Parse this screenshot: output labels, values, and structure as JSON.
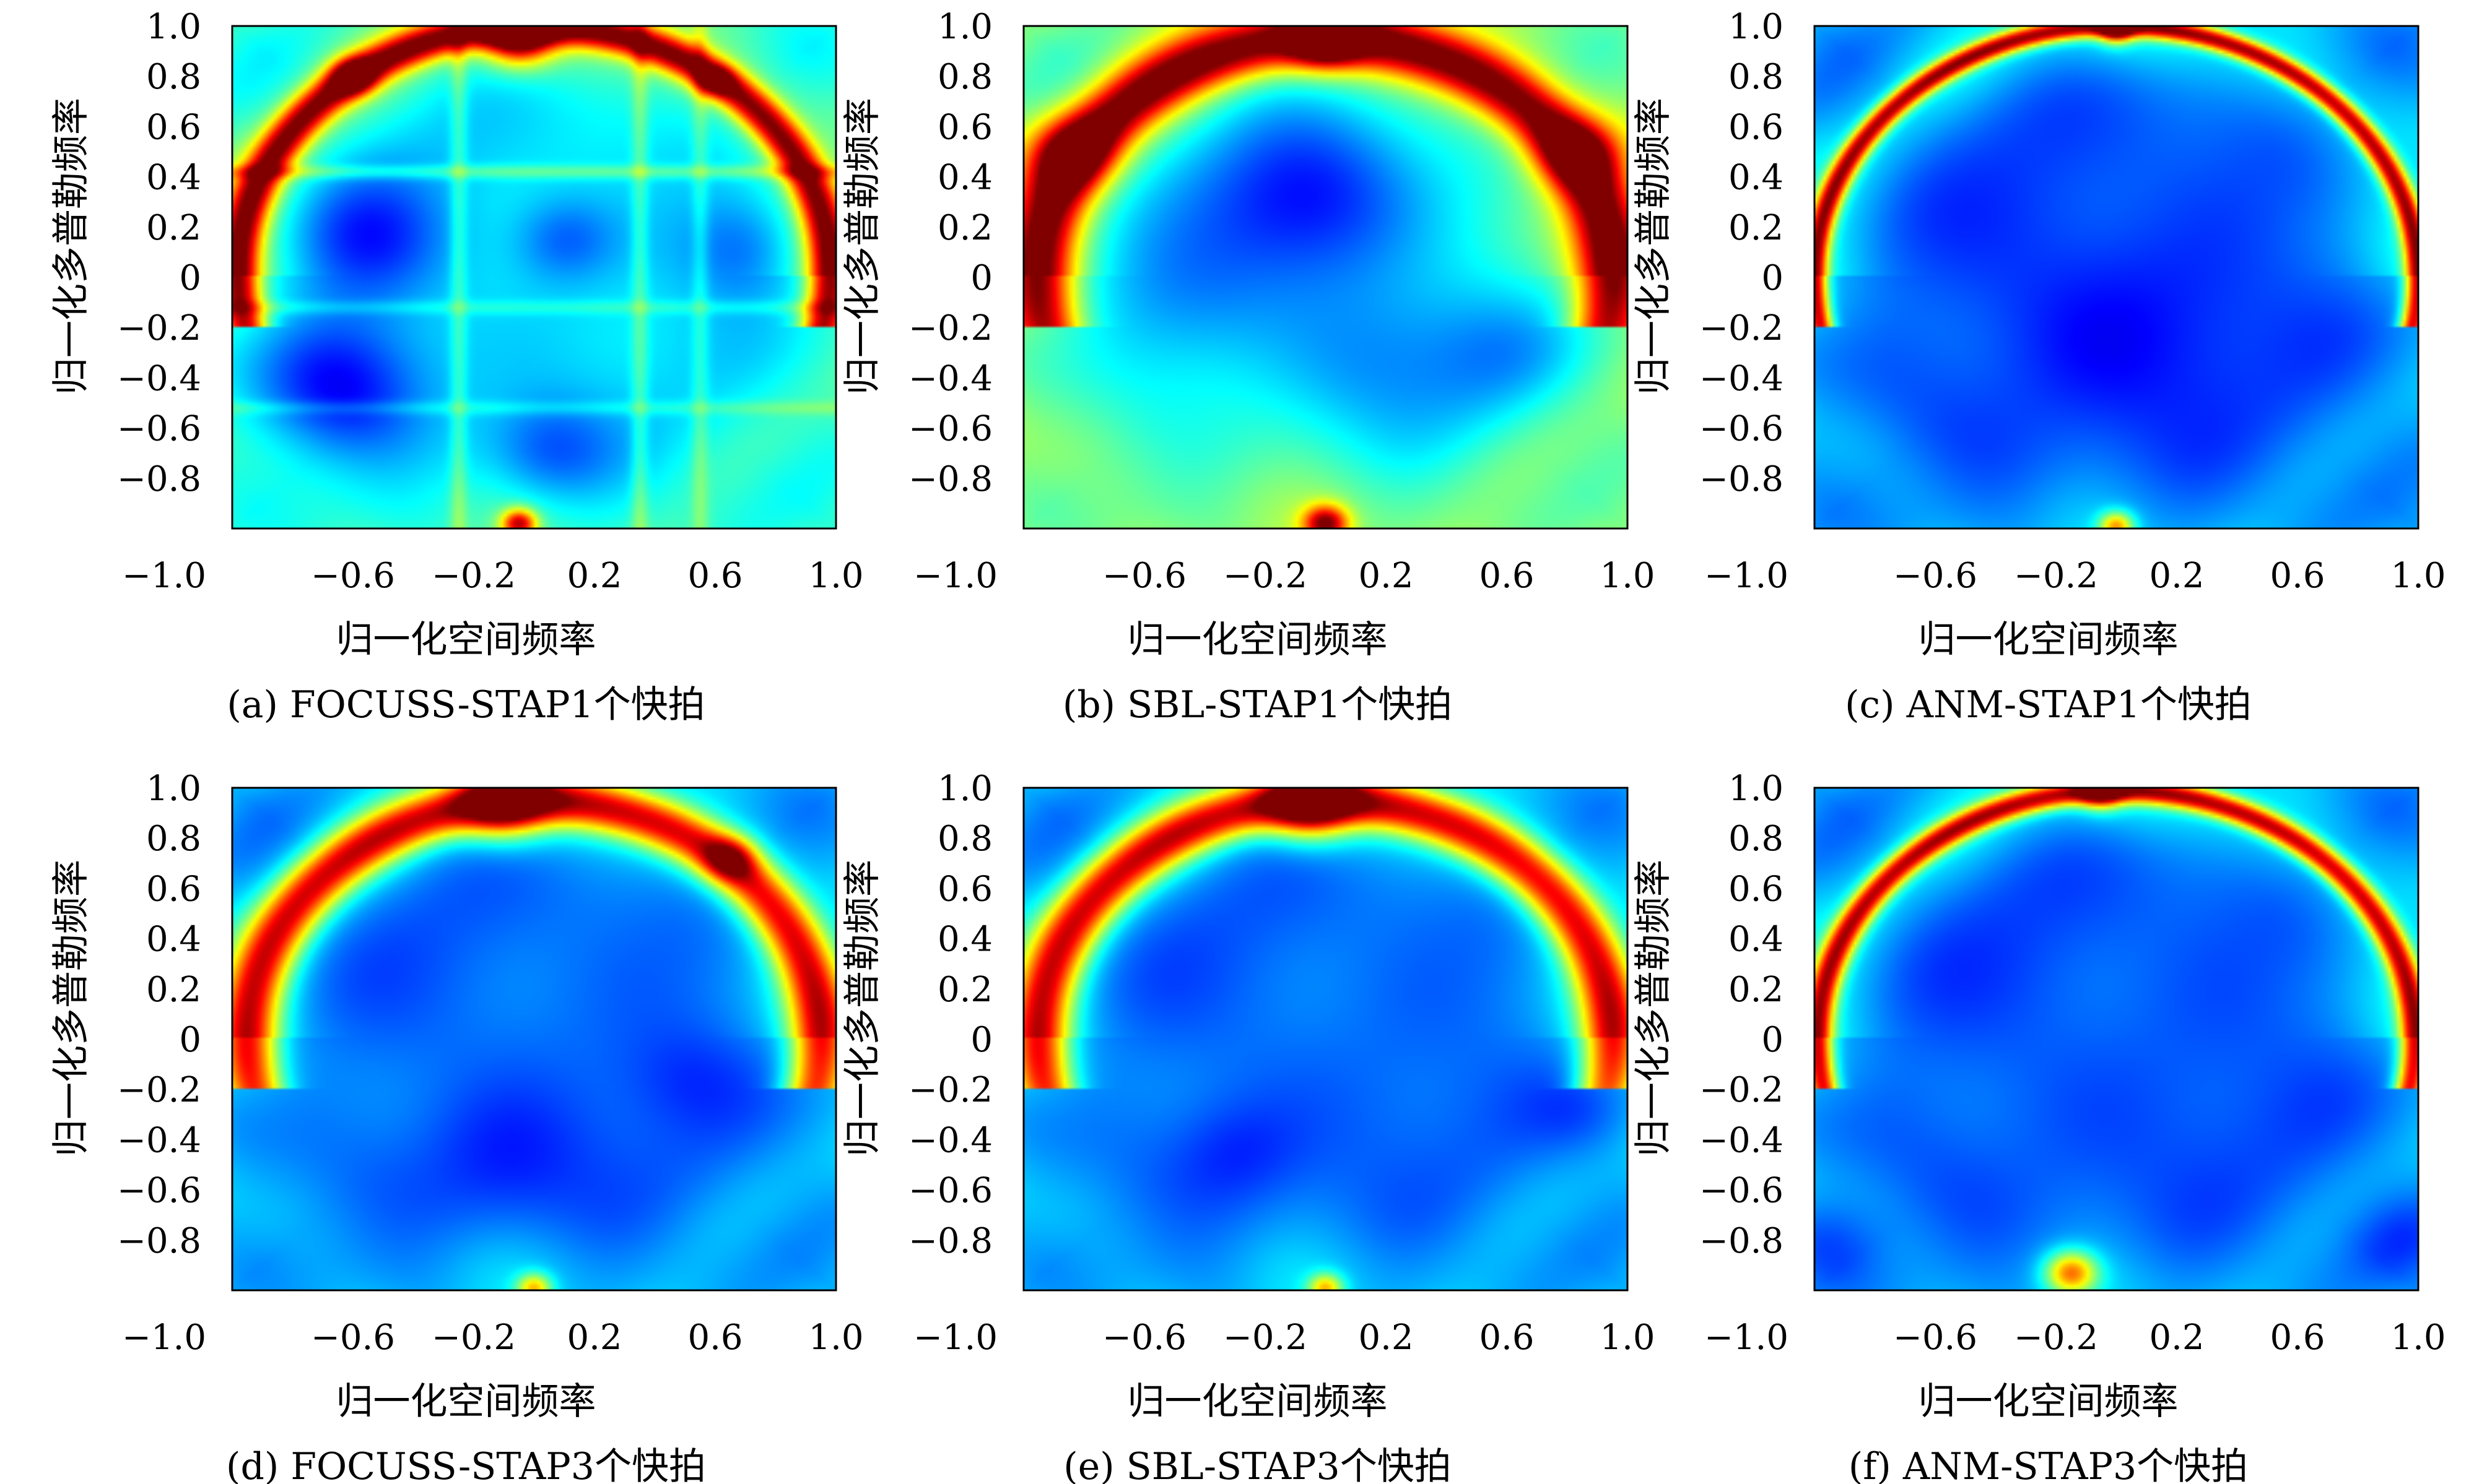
{
  "figure": {
    "background": "#ffffff"
  },
  "chart_data": [
    {
      "type": "heatmap",
      "caption": "(a) FOCUSS-STAP1个快拍",
      "xlabel": "归一化空间频率",
      "ylabel": "归一化多普勒频率",
      "xlim": [
        -1.0,
        1.0
      ],
      "ylim": [
        -1.0,
        1.0
      ],
      "xticks": [
        "−1.0",
        "−0.6",
        "−0.2",
        "0.2",
        "0.6",
        "1.0"
      ],
      "yticks": [
        "1.0",
        "0.8",
        "0.6",
        "0.4",
        "0.2",
        "0",
        "−0.2",
        "−0.4",
        "−0.6",
        "−0.8"
      ],
      "colormap": "jet",
      "features": {
        "background_level": 0.34,
        "arc": {
          "radius": 0.98,
          "center_y": 0.02,
          "strength": 0.55,
          "width": 0.05
        },
        "horizontal_ridges": [
          {
            "y": 0.42,
            "strength": 0.12
          },
          {
            "y": -0.12,
            "strength": 0.07
          },
          {
            "y": -0.52,
            "strength": 0.07
          }
        ],
        "vertical_ridges": [
          {
            "x": -0.25,
            "strength": 0.1
          },
          {
            "x": 0.35,
            "strength": 0.1
          },
          {
            "x": 0.55,
            "strength": 0.08
          }
        ],
        "hot_spots": [
          {
            "x": -0.05,
            "y": 0.97,
            "strength": 0.62,
            "r": 0.08
          },
          {
            "x": -0.6,
            "y": 0.8,
            "strength": 0.38,
            "r": 0.05
          },
          {
            "x": 0.6,
            "y": 0.78,
            "strength": 0.3,
            "r": 0.04
          },
          {
            "x": -0.05,
            "y": -0.98,
            "strength": 0.5,
            "r": 0.04
          }
        ],
        "dark_spots": [
          {
            "x": -0.65,
            "y": -0.42,
            "strength": 0.24,
            "r": 0.2
          },
          {
            "x": -0.55,
            "y": 0.15,
            "strength": 0.18,
            "r": 0.18
          },
          {
            "x": 0.05,
            "y": -0.7,
            "strength": 0.16,
            "r": 0.15
          },
          {
            "x": 0.7,
            "y": 0.12,
            "strength": 0.15,
            "r": 0.15
          },
          {
            "x": 0.1,
            "y": 0.15,
            "strength": 0.14,
            "r": 0.12
          }
        ]
      }
    },
    {
      "type": "heatmap",
      "caption": "(b) SBL-STAP1个快拍",
      "xlabel": "归一化空间频率",
      "ylabel": "归一化多普勒频率",
      "xlim": [
        -1.0,
        1.0
      ],
      "ylim": [
        -1.0,
        1.0
      ],
      "xticks": [
        "−1.0",
        "−0.6",
        "−0.2",
        "0.2",
        "0.6",
        "1.0"
      ],
      "yticks": [
        "1.0",
        "0.8",
        "0.6",
        "0.4",
        "0.2",
        "0",
        "−0.2",
        "−0.4",
        "−0.6",
        "−0.8"
      ],
      "colormap": "jet",
      "features": {
        "background_level": 0.42,
        "arc": {
          "radius": 0.95,
          "center_y": 0.0,
          "strength": 0.5,
          "width": 0.08
        },
        "horizontal_ridges": [],
        "vertical_ridges": [],
        "hot_spots": [
          {
            "x": 0.0,
            "y": 0.97,
            "strength": 0.55,
            "r": 0.08
          },
          {
            "x": -0.85,
            "y": 0.5,
            "strength": 0.3,
            "r": 0.1
          },
          {
            "x": 0.85,
            "y": 0.5,
            "strength": 0.3,
            "r": 0.1
          },
          {
            "x": 0.0,
            "y": -0.98,
            "strength": 0.5,
            "r": 0.05
          }
        ],
        "dark_spots": [
          {
            "x": -0.05,
            "y": 0.32,
            "strength": 0.3,
            "r": 0.26
          },
          {
            "x": -0.5,
            "y": -0.1,
            "strength": 0.16,
            "r": 0.25
          },
          {
            "x": 0.2,
            "y": -0.35,
            "strength": 0.14,
            "r": 0.25
          },
          {
            "x": 0.6,
            "y": -0.3,
            "strength": 0.12,
            "r": 0.2
          }
        ]
      }
    },
    {
      "type": "heatmap",
      "caption": "(c) ANM-STAP1个快拍",
      "xlabel": "归一化空间频率",
      "ylabel": "归一化多普勒频率",
      "xlim": [
        -1.0,
        1.0
      ],
      "ylim": [
        -1.0,
        1.0
      ],
      "xticks": [
        "−1.0",
        "−0.6",
        "−0.2",
        "0.2",
        "0.6",
        "1.0"
      ],
      "yticks": [
        "1.0",
        "0.8",
        "0.6",
        "0.4",
        "0.2",
        "0",
        "−0.2",
        "−0.4",
        "−0.6",
        "−0.8"
      ],
      "colormap": "jet",
      "features": {
        "background_level": 0.2,
        "arc": {
          "radius": 1.0,
          "center_y": 0.0,
          "strength": 0.62,
          "width": 0.03
        },
        "horizontal_ridges": [],
        "vertical_ridges": [],
        "hot_spots": [
          {
            "x": 0.0,
            "y": 0.99,
            "strength": 0.5,
            "r": 0.04
          },
          {
            "x": 0.0,
            "y": -0.99,
            "strength": 0.4,
            "r": 0.04
          }
        ],
        "dark_spots": [
          {
            "x": 0.0,
            "y": -0.2,
            "strength": 0.08,
            "r": 0.3
          }
        ]
      }
    },
    {
      "type": "heatmap",
      "caption": "(d) FOCUSS-STAP3个快拍",
      "xlabel": "归一化空间频率",
      "ylabel": "归一化多普勒频率",
      "xlim": [
        -1.0,
        1.0
      ],
      "ylim": [
        -1.0,
        1.0
      ],
      "xticks": [
        "−1.0",
        "−0.6",
        "−0.2",
        "0.2",
        "0.6",
        "1.0"
      ],
      "yticks": [
        "1.0",
        "0.8",
        "0.6",
        "0.4",
        "0.2",
        "0",
        "−0.2",
        "−0.4",
        "−0.6",
        "−0.8"
      ],
      "colormap": "jet",
      "features": {
        "background_level": 0.22,
        "arc": {
          "radius": 0.95,
          "center_y": 0.0,
          "strength": 0.55,
          "width": 0.07
        },
        "horizontal_ridges": [],
        "vertical_ridges": [],
        "hot_spots": [
          {
            "x": -0.1,
            "y": 0.95,
            "strength": 0.5,
            "r": 0.1
          },
          {
            "x": 0.65,
            "y": 0.72,
            "strength": 0.3,
            "r": 0.06
          },
          {
            "x": 0.0,
            "y": -0.99,
            "strength": 0.35,
            "r": 0.04
          }
        ],
        "dark_spots": [
          {
            "x": -0.1,
            "y": -0.5,
            "strength": 0.08,
            "r": 0.2
          },
          {
            "x": 0.5,
            "y": -0.15,
            "strength": 0.06,
            "r": 0.15
          }
        ]
      }
    },
    {
      "type": "heatmap",
      "caption": "(e) SBL-STAP3个快拍",
      "xlabel": "归一化空间频率",
      "ylabel": "归一化多普勒频率",
      "xlim": [
        -1.0,
        1.0
      ],
      "ylim": [
        -1.0,
        1.0
      ],
      "xticks": [
        "−1.0",
        "−0.6",
        "−0.2",
        "0.2",
        "0.6",
        "1.0"
      ],
      "yticks": [
        "1.0",
        "0.8",
        "0.6",
        "0.4",
        "0.2",
        "0",
        "−0.2",
        "−0.4",
        "−0.6",
        "−0.8"
      ],
      "colormap": "jet",
      "features": {
        "background_level": 0.22,
        "arc": {
          "radius": 0.95,
          "center_y": 0.0,
          "strength": 0.55,
          "width": 0.07
        },
        "horizontal_ridges": [],
        "vertical_ridges": [],
        "hot_spots": [
          {
            "x": -0.05,
            "y": 0.95,
            "strength": 0.55,
            "r": 0.1
          },
          {
            "x": 0.0,
            "y": -0.99,
            "strength": 0.35,
            "r": 0.04
          }
        ],
        "dark_spots": [
          {
            "x": -0.3,
            "y": -0.45,
            "strength": 0.08,
            "r": 0.15
          },
          {
            "x": 0.85,
            "y": -0.3,
            "strength": 0.06,
            "r": 0.12
          }
        ]
      }
    },
    {
      "type": "heatmap",
      "caption": "(f) ANM-STAP3个快拍",
      "xlabel": "归一化空间频率",
      "ylabel": "归一化多普勒频率",
      "xlim": [
        -1.0,
        1.0
      ],
      "ylim": [
        -1.0,
        1.0
      ],
      "xticks": [
        "−1.0",
        "−0.6",
        "−0.2",
        "0.2",
        "0.6",
        "1.0"
      ],
      "yticks": [
        "1.0",
        "0.8",
        "0.6",
        "0.4",
        "0.2",
        "0",
        "−0.2",
        "−0.4",
        "−0.6",
        "−0.8"
      ],
      "colormap": "jet",
      "features": {
        "background_level": 0.2,
        "arc": {
          "radius": 0.99,
          "center_y": 0.0,
          "strength": 0.6,
          "width": 0.035
        },
        "horizontal_ridges": [],
        "vertical_ridges": [],
        "hot_spots": [
          {
            "x": -0.05,
            "y": 0.99,
            "strength": 0.45,
            "r": 0.05
          },
          {
            "x": -0.15,
            "y": -0.93,
            "strength": 0.45,
            "r": 0.06
          }
        ],
        "dark_spots": [
          {
            "x": -0.95,
            "y": -0.8,
            "strength": 0.08,
            "r": 0.12
          },
          {
            "x": 0.95,
            "y": -0.8,
            "strength": 0.08,
            "r": 0.12
          }
        ]
      }
    }
  ]
}
